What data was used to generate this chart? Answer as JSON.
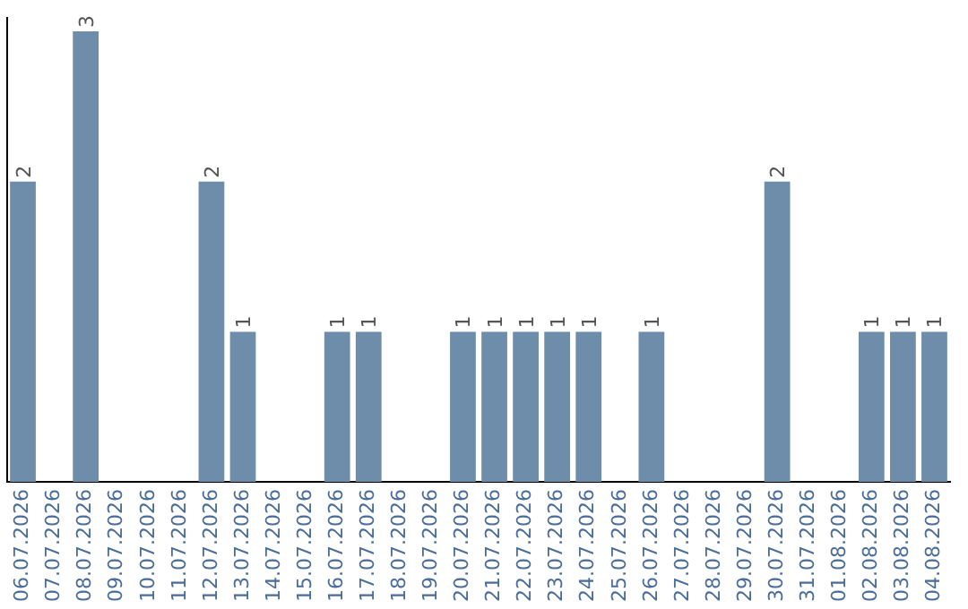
{
  "chart_data": {
    "type": "bar",
    "categories": [
      "06.07.2026",
      "07.07.2026",
      "08.07.2026",
      "09.07.2026",
      "10.07.2026",
      "11.07.2026",
      "12.07.2026",
      "13.07.2026",
      "14.07.2026",
      "15.07.2026",
      "16.07.2026",
      "17.07.2026",
      "18.07.2026",
      "19.07.2026",
      "20.07.2026",
      "21.07.2026",
      "22.07.2026",
      "23.07.2026",
      "24.07.2026",
      "25.07.2026",
      "26.07.2026",
      "27.07.2026",
      "28.07.2026",
      "29.07.2026",
      "30.07.2026",
      "31.07.2026",
      "01.08.2026",
      "02.08.2026",
      "03.08.2026",
      "04.08.2026"
    ],
    "values": [
      2,
      0,
      3,
      0,
      0,
      0,
      2,
      1,
      0,
      0,
      1,
      1,
      0,
      0,
      1,
      1,
      1,
      1,
      1,
      0,
      1,
      0,
      0,
      0,
      2,
      0,
      0,
      1,
      1,
      1
    ],
    "value_labels": [
      "2",
      null,
      "3",
      null,
      null,
      null,
      "2",
      "1",
      null,
      null,
      "1",
      "1",
      null,
      null,
      "1",
      "1",
      "1",
      "1",
      "1",
      null,
      "1",
      null,
      null,
      null,
      "2",
      null,
      null,
      "1",
      "1",
      "1"
    ],
    "color": "#6d8dab",
    "grid": false,
    "legend": false
  }
}
